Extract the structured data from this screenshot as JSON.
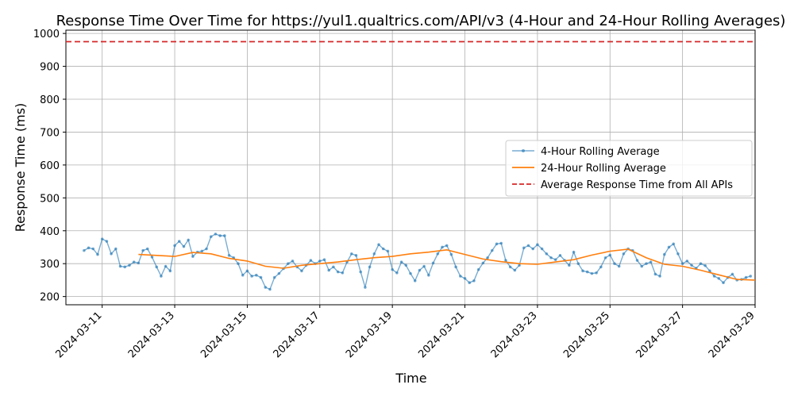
{
  "chart_data": {
    "type": "line",
    "title": "Response Time Over Time for https://yul1.qualtrics.com/API/v3 (4-Hour and 24-Hour Rolling Averages)",
    "xlabel": "Time",
    "ylabel": "Response Time (ms)",
    "xlim": [
      "2024-03-10T00:00",
      "2024-03-29T00:00"
    ],
    "ylim": [
      175,
      1010
    ],
    "grid": true,
    "legend_position": "center-right",
    "x_ticks": [
      "2024-03-11",
      "2024-03-13",
      "2024-03-15",
      "2024-03-17",
      "2024-03-19",
      "2024-03-21",
      "2024-03-23",
      "2024-03-25",
      "2024-03-27",
      "2024-03-29"
    ],
    "y_ticks": [
      200,
      300,
      400,
      500,
      600,
      700,
      800,
      900,
      1000
    ],
    "reference_line": {
      "name": "Average Response Time from All APIs",
      "value": 975,
      "color": "#d62728",
      "style": "dashed"
    },
    "series": [
      {
        "name": "4-Hour Rolling Average",
        "color": "#1f77b4",
        "marker": "circle",
        "points": [
          [
            "2024-03-10T12:00",
            340
          ],
          [
            "2024-03-10T15:00",
            348
          ],
          [
            "2024-03-10T18:00",
            345
          ],
          [
            "2024-03-10T21:00",
            328
          ],
          [
            "2024-03-11T00:00",
            375
          ],
          [
            "2024-03-11T03:00",
            368
          ],
          [
            "2024-03-11T06:00",
            330
          ],
          [
            "2024-03-11T09:00",
            345
          ],
          [
            "2024-03-11T12:00",
            292
          ],
          [
            "2024-03-11T15:00",
            290
          ],
          [
            "2024-03-11T18:00",
            295
          ],
          [
            "2024-03-11T21:00",
            305
          ],
          [
            "2024-03-12T00:00",
            302
          ],
          [
            "2024-03-12T03:00",
            340
          ],
          [
            "2024-03-12T06:00",
            345
          ],
          [
            "2024-03-12T09:00",
            320
          ],
          [
            "2024-03-12T12:00",
            290
          ],
          [
            "2024-03-12T15:00",
            262
          ],
          [
            "2024-03-12T18:00",
            292
          ],
          [
            "2024-03-12T21:00",
            278
          ],
          [
            "2024-03-13T00:00",
            355
          ],
          [
            "2024-03-13T03:00",
            368
          ],
          [
            "2024-03-13T06:00",
            352
          ],
          [
            "2024-03-13T09:00",
            372
          ],
          [
            "2024-03-13T12:00",
            322
          ],
          [
            "2024-03-13T15:00",
            335
          ],
          [
            "2024-03-13T18:00",
            338
          ],
          [
            "2024-03-13T21:00",
            345
          ],
          [
            "2024-03-14T00:00",
            382
          ],
          [
            "2024-03-14T03:00",
            390
          ],
          [
            "2024-03-14T06:00",
            385
          ],
          [
            "2024-03-14T09:00",
            385
          ],
          [
            "2024-03-14T12:00",
            325
          ],
          [
            "2024-03-14T15:00",
            318
          ],
          [
            "2024-03-14T18:00",
            300
          ],
          [
            "2024-03-14T21:00",
            265
          ],
          [
            "2024-03-15T00:00",
            278
          ],
          [
            "2024-03-15T03:00",
            262
          ],
          [
            "2024-03-15T06:00",
            265
          ],
          [
            "2024-03-15T09:00",
            258
          ],
          [
            "2024-03-15T12:00",
            228
          ],
          [
            "2024-03-15T15:00",
            222
          ],
          [
            "2024-03-15T18:00",
            258
          ],
          [
            "2024-03-15T21:00",
            270
          ],
          [
            "2024-03-16T00:00",
            285
          ],
          [
            "2024-03-16T03:00",
            300
          ],
          [
            "2024-03-16T06:00",
            308
          ],
          [
            "2024-03-16T09:00",
            290
          ],
          [
            "2024-03-16T12:00",
            278
          ],
          [
            "2024-03-16T15:00",
            295
          ],
          [
            "2024-03-16T18:00",
            310
          ],
          [
            "2024-03-16T21:00",
            300
          ],
          [
            "2024-03-17T00:00",
            308
          ],
          [
            "2024-03-17T03:00",
            312
          ],
          [
            "2024-03-17T06:00",
            280
          ],
          [
            "2024-03-17T09:00",
            290
          ],
          [
            "2024-03-17T12:00",
            275
          ],
          [
            "2024-03-17T15:00",
            272
          ],
          [
            "2024-03-17T18:00",
            305
          ],
          [
            "2024-03-17T21:00",
            330
          ],
          [
            "2024-03-18T00:00",
            325
          ],
          [
            "2024-03-18T03:00",
            275
          ],
          [
            "2024-03-18T06:00",
            228
          ],
          [
            "2024-03-18T09:00",
            290
          ],
          [
            "2024-03-18T12:00",
            330
          ],
          [
            "2024-03-18T15:00",
            358
          ],
          [
            "2024-03-18T18:00",
            345
          ],
          [
            "2024-03-18T21:00",
            338
          ],
          [
            "2024-03-19T00:00",
            282
          ],
          [
            "2024-03-19T03:00",
            272
          ],
          [
            "2024-03-19T06:00",
            305
          ],
          [
            "2024-03-19T09:00",
            295
          ],
          [
            "2024-03-19T12:00",
            270
          ],
          [
            "2024-03-19T15:00",
            248
          ],
          [
            "2024-03-19T18:00",
            280
          ],
          [
            "2024-03-19T21:00",
            292
          ],
          [
            "2024-03-20T00:00",
            265
          ],
          [
            "2024-03-20T03:00",
            302
          ],
          [
            "2024-03-20T06:00",
            330
          ],
          [
            "2024-03-20T09:00",
            350
          ],
          [
            "2024-03-20T12:00",
            355
          ],
          [
            "2024-03-20T15:00",
            328
          ],
          [
            "2024-03-20T18:00",
            290
          ],
          [
            "2024-03-20T21:00",
            262
          ],
          [
            "2024-03-21T00:00",
            255
          ],
          [
            "2024-03-21T03:00",
            242
          ],
          [
            "2024-03-21T06:00",
            248
          ],
          [
            "2024-03-21T09:00",
            282
          ],
          [
            "2024-03-21T12:00",
            302
          ],
          [
            "2024-03-21T15:00",
            318
          ],
          [
            "2024-03-21T18:00",
            340
          ],
          [
            "2024-03-21T21:00",
            360
          ],
          [
            "2024-03-22T00:00",
            362
          ],
          [
            "2024-03-22T03:00",
            310
          ],
          [
            "2024-03-22T06:00",
            290
          ],
          [
            "2024-03-22T09:00",
            280
          ],
          [
            "2024-03-22T12:00",
            295
          ],
          [
            "2024-03-22T15:00",
            348
          ],
          [
            "2024-03-22T18:00",
            355
          ],
          [
            "2024-03-22T21:00",
            345
          ],
          [
            "2024-03-23T00:00",
            358
          ],
          [
            "2024-03-23T03:00",
            345
          ],
          [
            "2024-03-23T06:00",
            330
          ],
          [
            "2024-03-23T09:00",
            318
          ],
          [
            "2024-03-23T12:00",
            312
          ],
          [
            "2024-03-23T15:00",
            325
          ],
          [
            "2024-03-23T18:00",
            310
          ],
          [
            "2024-03-23T21:00",
            295
          ],
          [
            "2024-03-24T00:00",
            335
          ],
          [
            "2024-03-24T03:00",
            300
          ],
          [
            "2024-03-24T06:00",
            278
          ],
          [
            "2024-03-24T09:00",
            275
          ],
          [
            "2024-03-24T12:00",
            270
          ],
          [
            "2024-03-24T15:00",
            272
          ],
          [
            "2024-03-24T18:00",
            290
          ],
          [
            "2024-03-24T21:00",
            318
          ],
          [
            "2024-03-25T00:00",
            326
          ],
          [
            "2024-03-25T03:00",
            300
          ],
          [
            "2024-03-25T06:00",
            292
          ],
          [
            "2024-03-25T09:00",
            330
          ],
          [
            "2024-03-25T12:00",
            345
          ],
          [
            "2024-03-25T15:00",
            340
          ],
          [
            "2024-03-25T18:00",
            310
          ],
          [
            "2024-03-25T21:00",
            292
          ],
          [
            "2024-03-26T00:00",
            300
          ],
          [
            "2024-03-26T03:00",
            305
          ],
          [
            "2024-03-26T06:00",
            268
          ],
          [
            "2024-03-26T09:00",
            262
          ],
          [
            "2024-03-26T12:00",
            328
          ],
          [
            "2024-03-26T15:00",
            350
          ],
          [
            "2024-03-26T18:00",
            360
          ],
          [
            "2024-03-26T21:00",
            330
          ],
          [
            "2024-03-27T00:00",
            300
          ],
          [
            "2024-03-27T03:00",
            308
          ],
          [
            "2024-03-27T06:00",
            295
          ],
          [
            "2024-03-27T09:00",
            286
          ],
          [
            "2024-03-27T12:00",
            300
          ],
          [
            "2024-03-27T15:00",
            294
          ],
          [
            "2024-03-27T18:00",
            278
          ],
          [
            "2024-03-27T21:00",
            262
          ],
          [
            "2024-03-28T00:00",
            255
          ],
          [
            "2024-03-28T03:00",
            242
          ],
          [
            "2024-03-28T06:00",
            258
          ],
          [
            "2024-03-28T09:00",
            268
          ],
          [
            "2024-03-28T12:00",
            250
          ],
          [
            "2024-03-28T15:00",
            252
          ],
          [
            "2024-03-28T18:00",
            258
          ],
          [
            "2024-03-28T21:00",
            262
          ]
        ]
      },
      {
        "name": "24-Hour Rolling Average",
        "color": "#ff7f0e",
        "marker": "none",
        "points": [
          [
            "2024-03-12T00:00",
            328
          ],
          [
            "2024-03-12T12:00",
            325
          ],
          [
            "2024-03-13T00:00",
            322
          ],
          [
            "2024-03-13T12:00",
            334
          ],
          [
            "2024-03-14T00:00",
            330
          ],
          [
            "2024-03-14T12:00",
            316
          ],
          [
            "2024-03-15T00:00",
            308
          ],
          [
            "2024-03-15T12:00",
            292
          ],
          [
            "2024-03-16T00:00",
            286
          ],
          [
            "2024-03-16T12:00",
            295
          ],
          [
            "2024-03-17T00:00",
            300
          ],
          [
            "2024-03-17T12:00",
            305
          ],
          [
            "2024-03-18T00:00",
            312
          ],
          [
            "2024-03-18T12:00",
            318
          ],
          [
            "2024-03-19T00:00",
            322
          ],
          [
            "2024-03-19T12:00",
            330
          ],
          [
            "2024-03-20T00:00",
            335
          ],
          [
            "2024-03-20T12:00",
            342
          ],
          [
            "2024-03-21T00:00",
            328
          ],
          [
            "2024-03-21T12:00",
            314
          ],
          [
            "2024-03-22T00:00",
            306
          ],
          [
            "2024-03-22T12:00",
            300
          ],
          [
            "2024-03-23T00:00",
            298
          ],
          [
            "2024-03-23T12:00",
            305
          ],
          [
            "2024-03-24T00:00",
            312
          ],
          [
            "2024-03-24T12:00",
            326
          ],
          [
            "2024-03-25T00:00",
            338
          ],
          [
            "2024-03-25T12:00",
            344
          ],
          [
            "2024-03-26T00:00",
            318
          ],
          [
            "2024-03-26T12:00",
            298
          ],
          [
            "2024-03-27T00:00",
            292
          ],
          [
            "2024-03-27T12:00",
            280
          ],
          [
            "2024-03-28T00:00",
            266
          ],
          [
            "2024-03-28T12:00",
            252
          ],
          [
            "2024-03-29T00:00",
            250
          ]
        ]
      }
    ]
  }
}
